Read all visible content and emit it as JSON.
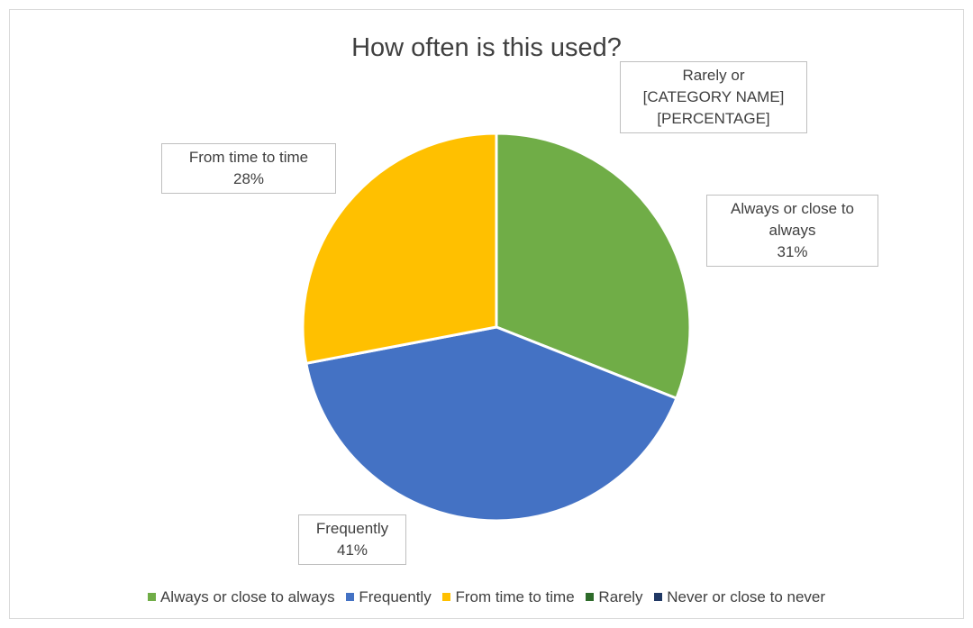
{
  "chart_data": {
    "type": "pie",
    "title": "How often is this used?",
    "categories": [
      "Always or close to always",
      "Frequently",
      "From time to time",
      "Rarely",
      "Never or close to never"
    ],
    "values": [
      31,
      41,
      28,
      0,
      0
    ],
    "colors": [
      "#70ad47",
      "#4472c4",
      "#ffc000",
      "#2e6b2a",
      "#203864"
    ],
    "data_labels": [
      {
        "category": "Always or close to always",
        "lines": [
          "Always or close to",
          "always",
          "31%"
        ]
      },
      {
        "category": "Frequently",
        "lines": [
          "Frequently",
          "41%"
        ]
      },
      {
        "category": "From time to time",
        "lines": [
          "From time to time",
          "28%"
        ]
      },
      {
        "category": "Rarely",
        "lines": [
          "Rarely or",
          "[CATEGORY NAME]",
          "[PERCENTAGE]"
        ]
      }
    ],
    "legend_position": "bottom",
    "start_angle": "top, clockwise"
  }
}
